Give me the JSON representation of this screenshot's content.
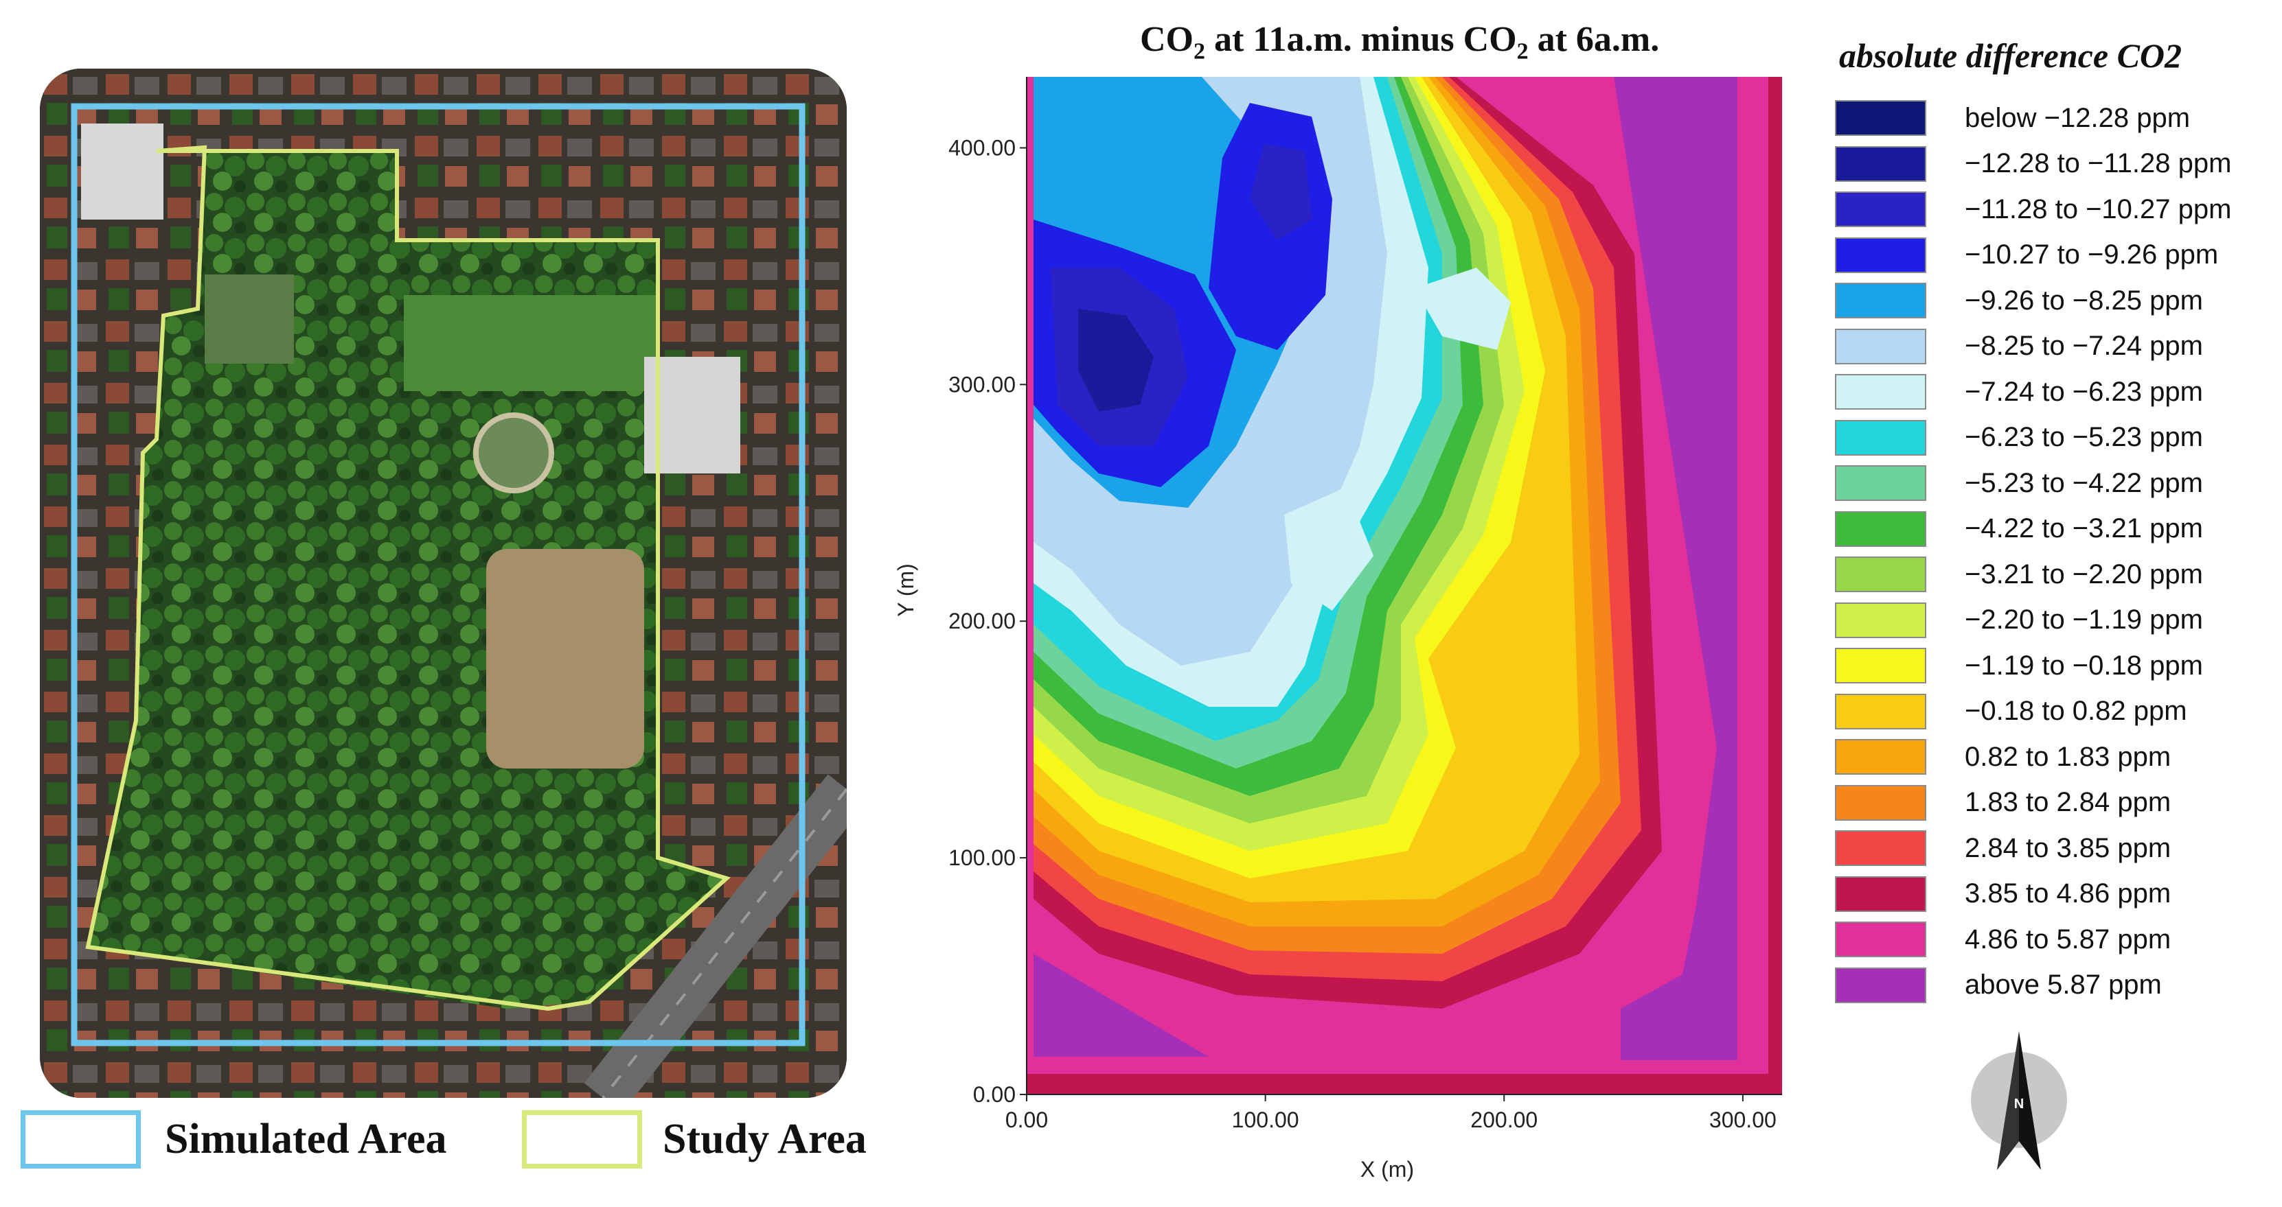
{
  "map_legend": {
    "simulated_label": "Simulated Area",
    "study_label": "Study Area",
    "simulated_color": "#6ec6ec",
    "study_color": "#d9e87a"
  },
  "plot": {
    "title_main": "CO",
    "title_sub": "2",
    "title_mid": " at 11a.m. minus CO",
    "title_sub2": "2",
    "title_end": " at 6a.m.",
    "x_axis_label": "X (m)",
    "y_axis_label": "Y (m)",
    "x_ticks": [
      "0.00",
      "100.00",
      "200.00",
      "300.00"
    ],
    "y_ticks": [
      "0.00",
      "100.00",
      "200.00",
      "300.00",
      "400.00"
    ],
    "x_range": [
      0,
      315
    ],
    "y_range": [
      0,
      430
    ]
  },
  "legend": {
    "title": "absolute difference CO2",
    "items": [
      {
        "label": "below −12.28 ppm",
        "color": "#0c1675"
      },
      {
        "label": "−12.28 to −11.28 ppm",
        "color": "#1b1a9a"
      },
      {
        "label": "−11.28 to −10.27 ppm",
        "color": "#2a22c4"
      },
      {
        "label": "−10.27 to −9.26 ppm",
        "color": "#1e1ee6"
      },
      {
        "label": "−9.26 to −8.25 ppm",
        "color": "#1aa3e8"
      },
      {
        "label": "−8.25 to −7.24 ppm",
        "color": "#b6d8f2"
      },
      {
        "label": "−7.24 to −6.23 ppm",
        "color": "#cff3f7"
      },
      {
        "label": "−6.23 to −5.23 ppm",
        "color": "#22d6dc"
      },
      {
        "label": "−5.23 to −4.22 ppm",
        "color": "#6cd49a"
      },
      {
        "label": "−4.22 to −3.21 ppm",
        "color": "#3cbb3c"
      },
      {
        "label": "−3.21 to −2.20 ppm",
        "color": "#96d84a"
      },
      {
        "label": "−2.20 to −1.19 ppm",
        "color": "#cff048"
      },
      {
        "label": "−1.19 to −0.18 ppm",
        "color": "#f7f71a"
      },
      {
        "label": "−0.18 to 0.82 ppm",
        "color": "#f8cc12"
      },
      {
        "label": "0.82 to 1.83 ppm",
        "color": "#f8a60e"
      },
      {
        "label": "1.83 to 2.84 ppm",
        "color": "#f6861a"
      },
      {
        "label": "2.84 to 3.85 ppm",
        "color": "#f24646"
      },
      {
        "label": "3.85 to 4.86 ppm",
        "color": "#c1154e"
      },
      {
        "label": "4.86 to 5.87 ppm",
        "color": "#e1309a"
      },
      {
        "label": "above 5.87 ppm",
        "color": "#a52fb6"
      }
    ]
  },
  "north_arrow": {
    "label": "N"
  }
}
